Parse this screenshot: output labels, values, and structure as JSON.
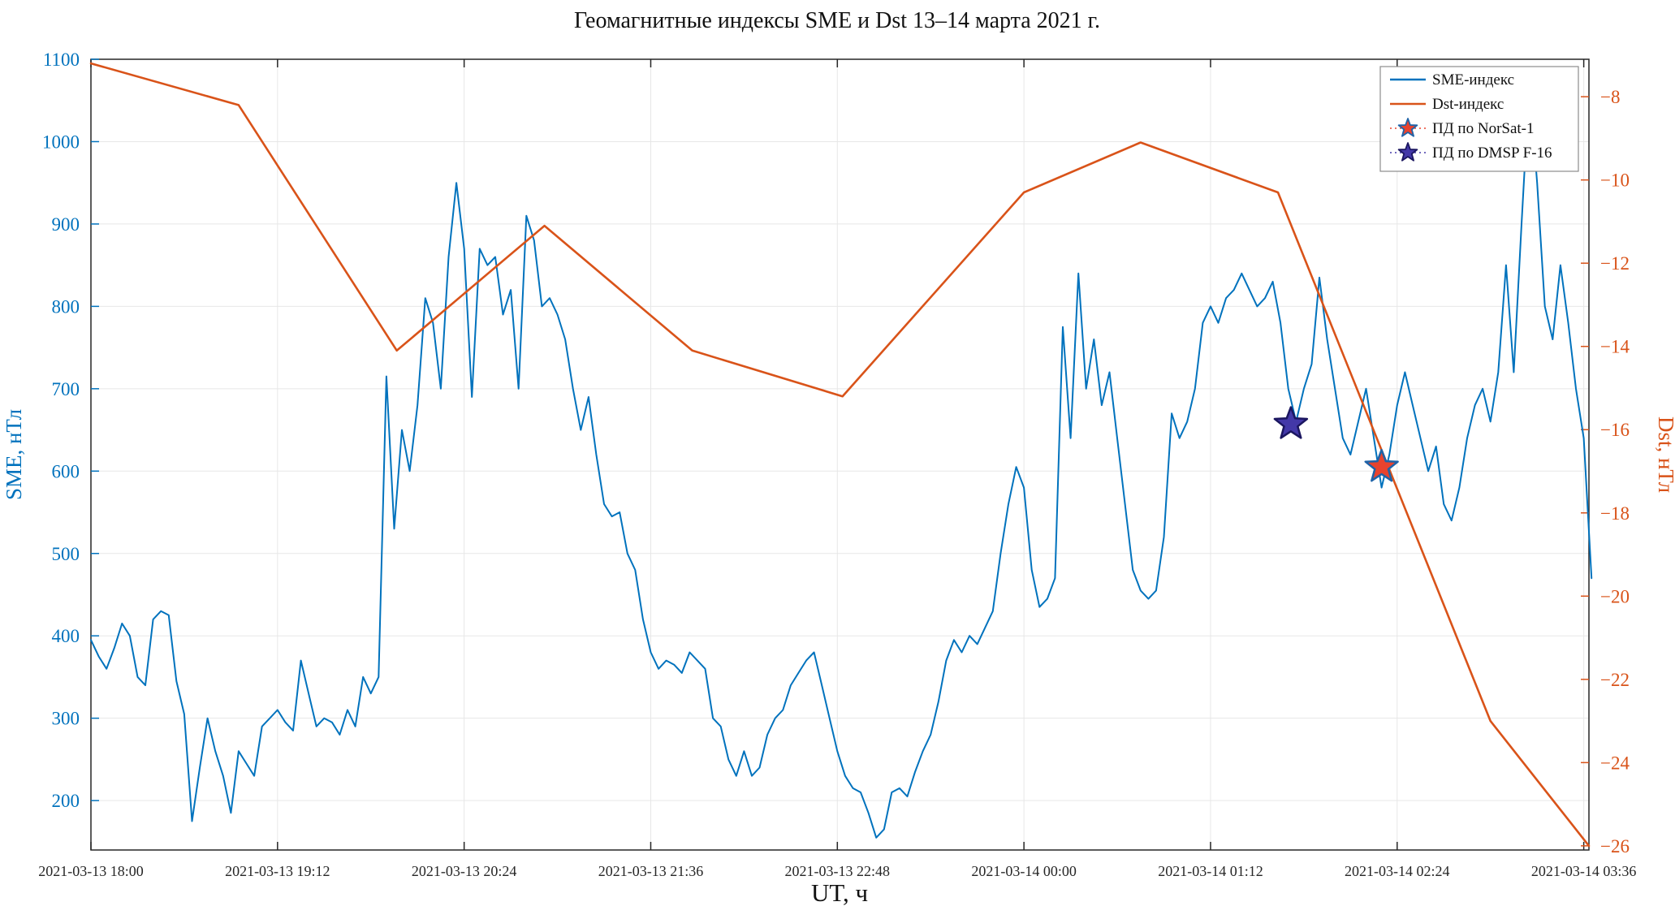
{
  "title": "Геомагнитные индексы SME и Dst 13–14 марта 2021 г.",
  "xlabel": "UT, ч",
  "left_axis": {
    "label": "SME, нТл",
    "color": "#0072BD",
    "ticks": [
      200,
      300,
      400,
      500,
      600,
      700,
      800,
      900,
      1000,
      1100
    ],
    "range": [
      140,
      1100
    ]
  },
  "right_axis": {
    "label": "Dst, нТл",
    "color": "#D95319",
    "ticks": [
      -8,
      -10,
      -12,
      -14,
      -16,
      -18,
      -20,
      -22,
      -24,
      -26
    ],
    "range": [
      -26.1,
      -7.1
    ]
  },
  "x_axis": {
    "tick_minutes": [
      0,
      72,
      144,
      216,
      288,
      360,
      432,
      504,
      576
    ],
    "tick_labels": [
      "2021-03-13 18:00",
      "2021-03-13 19:12",
      "2021-03-13 20:24",
      "2021-03-13 21:36",
      "2021-03-13 22:48",
      "2021-03-14 00:00",
      "2021-03-14 01:12",
      "2021-03-14 02:24",
      "2021-03-14 03:36"
    ],
    "range_minutes": [
      0,
      578
    ]
  },
  "legend": [
    {
      "label": "SME-индекс",
      "marker": "line",
      "color": "#0072BD"
    },
    {
      "label": "Dst-индекс",
      "marker": "line",
      "color": "#D95319"
    },
    {
      "label": "ПД по NorSat-1",
      "marker": "star",
      "fill": "#e8432e",
      "edge": "#1f63a8"
    },
    {
      "label": "ПД по DMSP F-16",
      "marker": "star",
      "fill": "#4338a8",
      "edge": "#1b1660"
    }
  ],
  "chart_data": {
    "type": "line",
    "title": "Геомагнитные индексы SME и Dst 13–14 марта 2021 г.",
    "xlabel": "UT, ч",
    "grid": true,
    "legend_position": "top-right",
    "series": [
      {
        "name": "SME-индекс",
        "axis": "left",
        "color": "#0072BD",
        "x_start_minute": 0,
        "x_step_minutes": 3,
        "values": [
          395,
          375,
          360,
          385,
          415,
          400,
          350,
          340,
          420,
          430,
          425,
          345,
          305,
          175,
          240,
          300,
          260,
          230,
          185,
          260,
          245,
          230,
          290,
          300,
          310,
          295,
          285,
          370,
          330,
          290,
          300,
          295,
          280,
          310,
          290,
          350,
          330,
          350,
          715,
          530,
          650,
          600,
          680,
          810,
          780,
          700,
          860,
          950,
          870,
          690,
          870,
          850,
          860,
          790,
          820,
          700,
          910,
          880,
          800,
          810,
          790,
          760,
          700,
          650,
          690,
          620,
          560,
          545,
          550,
          500,
          480,
          420,
          380,
          360,
          370,
          365,
          355,
          380,
          370,
          360,
          300,
          290,
          250,
          230,
          260,
          230,
          240,
          280,
          300,
          310,
          340,
          355,
          370,
          380,
          340,
          300,
          260,
          230,
          215,
          210,
          185,
          155,
          165,
          210,
          215,
          205,
          235,
          260,
          280,
          320,
          370,
          395,
          380,
          400,
          390,
          410,
          430,
          500,
          560,
          605,
          580,
          480,
          435,
          445,
          470,
          775,
          640,
          840,
          700,
          760,
          680,
          720,
          640,
          560,
          480,
          455,
          445,
          455,
          520,
          670,
          640,
          660,
          700,
          780,
          800,
          780,
          810,
          820,
          840,
          820,
          800,
          810,
          830,
          780,
          700,
          660,
          700,
          730,
          835,
          760,
          700,
          640,
          620,
          660,
          700,
          640,
          580,
          620,
          680,
          720,
          680,
          640,
          600,
          630,
          560,
          540,
          580,
          640,
          680,
          700,
          660,
          720,
          850,
          720,
          900,
          1070,
          950,
          800,
          760,
          850,
          780,
          700,
          640,
          470
        ]
      },
      {
        "name": "Dst-индекс",
        "axis": "right",
        "color": "#D95319",
        "x_minutes": [
          0,
          57,
          118,
          175,
          232,
          290,
          360,
          405,
          458,
          540,
          578
        ],
        "values": [
          -7.2,
          -8.2,
          -14.1,
          -11.1,
          -14.1,
          -15.2,
          -10.3,
          -9.1,
          -10.3,
          -23,
          -26
        ]
      }
    ],
    "markers": [
      {
        "name": "ПД по NorSat-1",
        "x_minute": 498,
        "sme_value": 605,
        "fill": "#e8432e",
        "edge": "#1f63a8"
      },
      {
        "name": "ПД по DMSP F-16",
        "x_minute": 463,
        "sme_value": 657,
        "fill": "#4338a8",
        "edge": "#1b1660"
      }
    ]
  }
}
